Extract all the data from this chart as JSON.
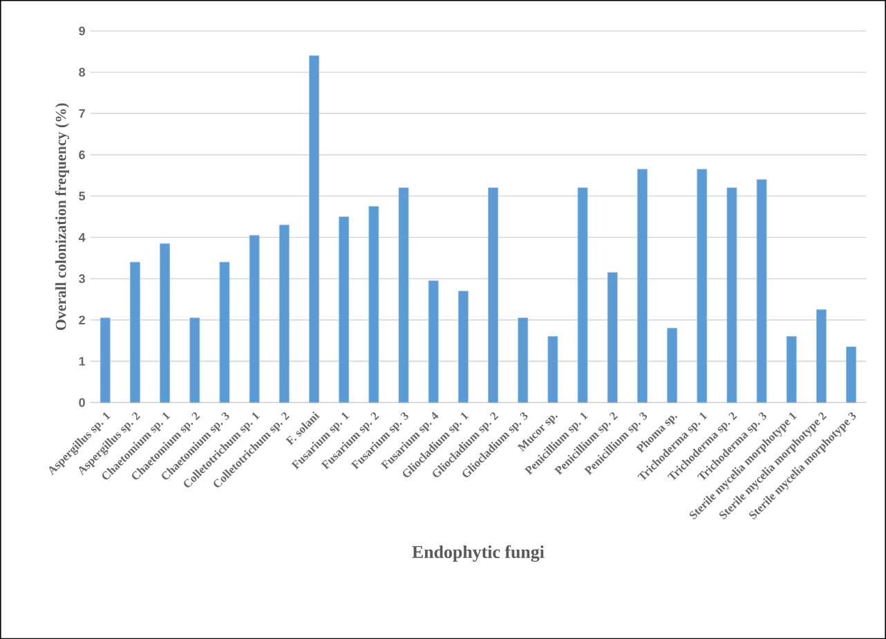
{
  "chart_data": {
    "type": "bar",
    "xlabel": "Endophytic fungi",
    "ylabel": "Overall colonization frequency (%)",
    "categories": [
      "Aspergillus sp. 1",
      "Aspergillus sp. 2",
      "Chaetomium sp. 1",
      "Chaetomium sp. 2",
      "Chaetomium sp. 3",
      "Colletotrichum sp. 1",
      "Colletotrichum sp. 2",
      "F. solani",
      "Fusarium sp. 1",
      "Fusarium sp. 2",
      "Fusarium sp. 3",
      "Fusarium sp. 4",
      "Gliocladium sp. 1",
      "Gliocladium sp. 2",
      "Gliocladium sp. 3",
      "Mucor sp.",
      "Penicillium sp. 1",
      "Penicillium sp. 2",
      "Penicillium sp. 3",
      "Phoma sp.",
      "Trichoderma sp. 1",
      "Trichoderma sp. 2",
      "Trichoderma sp. 3",
      "Sterile mycelia morphotype 1",
      "Sterile mycelia morphotype 2",
      "Sterile mycelia morphotype 3"
    ],
    "values": [
      2.05,
      3.4,
      3.85,
      2.05,
      3.4,
      4.05,
      4.3,
      8.4,
      4.5,
      4.75,
      5.2,
      2.95,
      2.7,
      5.2,
      2.05,
      1.6,
      5.2,
      3.15,
      5.65,
      1.8,
      5.65,
      5.2,
      5.4,
      1.6,
      2.25,
      1.35
    ],
    "color": "#5b9bd5",
    "ylim": [
      0,
      9
    ],
    "yticks": [
      0,
      1,
      2,
      3,
      4,
      5,
      6,
      7,
      8,
      9
    ],
    "grid": "y"
  }
}
